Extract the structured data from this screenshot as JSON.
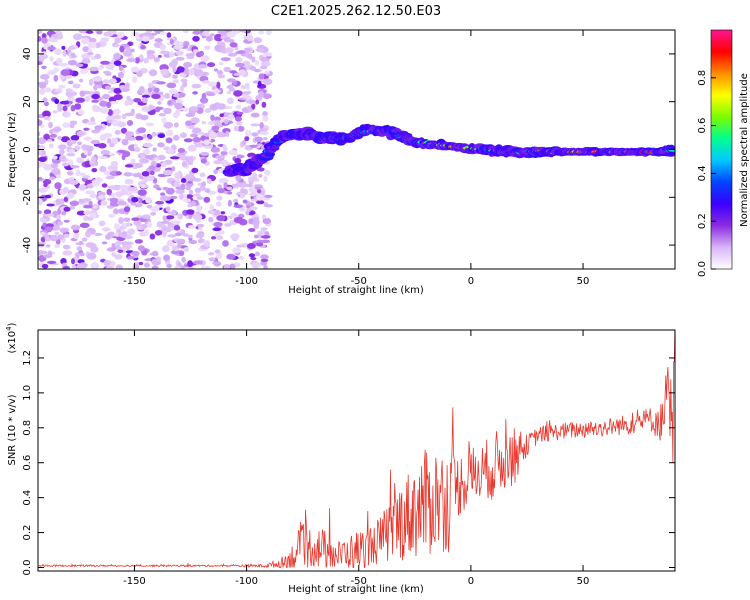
{
  "figure_title": "C2E1.2025.262.12.50.E03",
  "chart_data": [
    {
      "type": "heatmap",
      "title": "C2E1.2025.262.12.50.E03",
      "xlabel": "Height of straight line (km)",
      "ylabel": "Frequency (Hz)",
      "xlim": [
        -193,
        91
      ],
      "ylim": [
        -50,
        50
      ],
      "x_ticks": [
        -150,
        -100,
        -50,
        0,
        50
      ],
      "y_ticks": [
        -40,
        -20,
        0,
        20,
        40
      ],
      "noise_region": {
        "x_from": -193,
        "x_to": -90,
        "amplitude_range": [
          0.0,
          0.25
        ]
      },
      "signal_track": [
        {
          "x": -108,
          "y": -9,
          "amplitude": 0.35
        },
        {
          "x": -100,
          "y": -8,
          "amplitude": 0.3
        },
        {
          "x": -92,
          "y": -3,
          "amplitude": 0.4
        },
        {
          "x": -85,
          "y": 5,
          "amplitude": 0.45
        },
        {
          "x": -75,
          "y": 7,
          "amplitude": 0.4
        },
        {
          "x": -65,
          "y": 5,
          "amplitude": 0.35
        },
        {
          "x": -55,
          "y": 5,
          "amplitude": 0.4
        },
        {
          "x": -45,
          "y": 8,
          "amplitude": 0.45
        },
        {
          "x": -35,
          "y": 7,
          "amplitude": 0.4
        },
        {
          "x": -25,
          "y": 3,
          "amplitude": 0.5
        },
        {
          "x": -15,
          "y": 2,
          "amplitude": 0.7
        },
        {
          "x": -5,
          "y": 1,
          "amplitude": 0.9
        },
        {
          "x": 5,
          "y": 0,
          "amplitude": 0.6
        },
        {
          "x": 15,
          "y": -1,
          "amplitude": 0.5
        },
        {
          "x": 25,
          "y": -1,
          "amplitude": 0.6
        },
        {
          "x": 35,
          "y": -1,
          "amplitude": 0.8
        },
        {
          "x": 45,
          "y": -1,
          "amplitude": 0.9
        },
        {
          "x": 55,
          "y": -1,
          "amplitude": 0.95
        },
        {
          "x": 65,
          "y": -1,
          "amplitude": 1.0
        },
        {
          "x": 75,
          "y": -1,
          "amplitude": 1.0
        },
        {
          "x": 85,
          "y": -1,
          "amplitude": 0.9
        },
        {
          "x": 90,
          "y": 0,
          "amplitude": 0.5
        }
      ],
      "colorbar": {
        "label": "Normalized spectral amplitude",
        "range": [
          0.0,
          1.0
        ],
        "ticks": [
          0.0,
          0.2,
          0.4,
          0.6,
          0.8
        ],
        "tick_labels": [
          "0.0",
          "0.2",
          "0.4",
          "0.6",
          "0.8"
        ],
        "colors": [
          "#ffffff",
          "#d8b4f8",
          "#8a2be2",
          "#3b00ff",
          "#0044ff",
          "#00c8ff",
          "#00ff90",
          "#7cfc00",
          "#ffff00",
          "#ff8c00",
          "#ff0000",
          "#ff1493"
        ]
      }
    },
    {
      "type": "line",
      "xlabel": "Height of straight line (km)",
      "ylabel": "SNR (10 * v/v)",
      "y_multiplier": "(x10",
      "y_multiplier_exp": "4",
      "y_multiplier_close": ")",
      "xlim": [
        -193,
        91
      ],
      "ylim": [
        -0.02,
        1.36
      ],
      "x_ticks": [
        -150,
        -100,
        -50,
        0,
        50
      ],
      "y_ticks": [
        0.0,
        0.2,
        0.4,
        0.6,
        0.8,
        1.0,
        1.2
      ],
      "y_tick_labels": [
        "0.0",
        "0.2",
        "0.4",
        "0.6",
        "0.8",
        "1.0",
        "1.2"
      ],
      "line_color": "#e8382e",
      "series": [
        {
          "name": "SNR",
          "x": [
            -193,
            -150,
            -110,
            -92,
            -85,
            -80,
            -78,
            -75,
            -70,
            -65,
            -60,
            -55,
            -50,
            -45,
            -40,
            -35,
            -30,
            -25,
            -20,
            -15,
            -10,
            -5,
            0,
            5,
            10,
            15,
            20,
            25,
            30,
            40,
            50,
            60,
            70,
            80,
            85,
            88,
            90,
            91
          ],
          "y": [
            0.01,
            0.01,
            0.01,
            0.01,
            0.02,
            0.05,
            0.08,
            0.1,
            0.12,
            0.1,
            0.07,
            0.08,
            0.1,
            0.12,
            0.16,
            0.22,
            0.28,
            0.33,
            0.36,
            0.4,
            0.38,
            0.48,
            0.52,
            0.55,
            0.58,
            0.62,
            0.64,
            0.7,
            0.76,
            0.78,
            0.79,
            0.8,
            0.82,
            0.85,
            0.83,
            1.0,
            0.7,
            1.35
          ],
          "spread": [
            0.005,
            0.005,
            0.005,
            0.01,
            0.03,
            0.08,
            0.12,
            0.15,
            0.12,
            0.12,
            0.08,
            0.1,
            0.12,
            0.12,
            0.14,
            0.2,
            0.24,
            0.28,
            0.32,
            0.3,
            0.3,
            0.18,
            0.18,
            0.16,
            0.2,
            0.18,
            0.16,
            0.06,
            0.05,
            0.05,
            0.05,
            0.05,
            0.06,
            0.07,
            0.12,
            0.2,
            0.35,
            0.1
          ]
        }
      ]
    }
  ]
}
